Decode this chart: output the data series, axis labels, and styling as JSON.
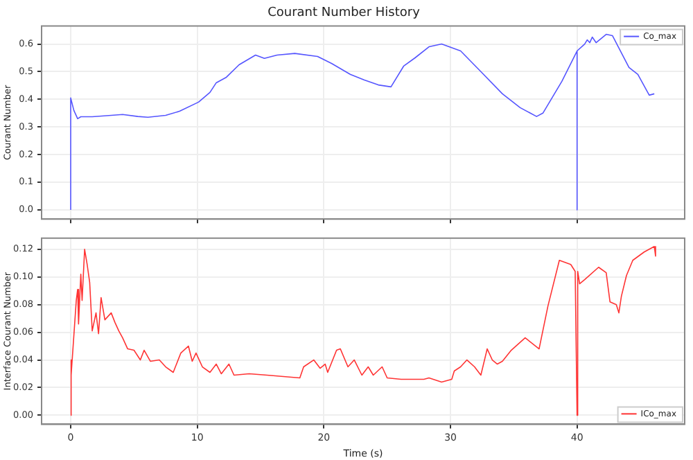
{
  "chart_data": [
    {
      "type": "line",
      "title": "Courant Number History",
      "ylabel": "Courant Number",
      "xlim": [
        -2.3,
        48.5
      ],
      "ylim": [
        -0.033,
        0.665
      ],
      "xticks": [
        0,
        10,
        20,
        30,
        40
      ],
      "yticks": [
        {
          "value": 0,
          "label": "0.0"
        },
        {
          "value": 0.1,
          "label": "0.1"
        },
        {
          "value": 0.2,
          "label": "0.2"
        },
        {
          "value": 0.3,
          "label": "0.3"
        },
        {
          "value": 0.4,
          "label": "0.4"
        },
        {
          "value": 0.5,
          "label": "0.5"
        },
        {
          "value": 0.6,
          "label": "0.6"
        }
      ],
      "grid": true,
      "legend": "top right",
      "tick_labels": "y",
      "series": [
        {
          "name": "Co_max",
          "color": "#5555ff",
          "x": [
            0,
            0,
            0.25,
            0.55,
            0.8,
            1.7,
            3.2,
            4.1,
            5.3,
            6.1,
            7.5,
            8.6,
            10.1,
            11,
            11.5,
            12.3,
            13.3,
            14.6,
            15.3,
            16.3,
            17.7,
            19.5,
            20.6,
            22.1,
            23.2,
            24.3,
            25.3,
            26.3,
            27.2,
            28.3,
            29.3,
            30.8,
            32.3,
            34.1,
            35.5,
            36.8,
            37.3,
            38.8,
            40,
            40,
            40,
            40.6,
            40.8,
            41,
            41.2,
            41.5,
            42.3,
            42.8,
            44.1,
            44.8,
            45.7,
            46.1
          ],
          "values": [
            0,
            0.405,
            0.36,
            0.33,
            0.337,
            0.337,
            0.342,
            0.345,
            0.338,
            0.335,
            0.342,
            0.357,
            0.39,
            0.425,
            0.46,
            0.48,
            0.525,
            0.56,
            0.548,
            0.56,
            0.566,
            0.555,
            0.53,
            0.49,
            0.47,
            0.452,
            0.445,
            0.52,
            0.55,
            0.59,
            0.6,
            0.575,
            0.505,
            0.42,
            0.37,
            0.338,
            0.35,
            0.465,
            0.575,
            0,
            0.575,
            0.6,
            0.615,
            0.605,
            0.625,
            0.605,
            0.635,
            0.63,
            0.515,
            0.49,
            0.415,
            0.42
          ]
        }
      ]
    },
    {
      "type": "line",
      "xlabel": "Time (s)",
      "ylabel": "Interface Courant Number",
      "xlim": [
        -2.3,
        48.5
      ],
      "ylim": [
        -0.0065,
        0.128
      ],
      "xticks": [
        0,
        10,
        20,
        30,
        40
      ],
      "yticks": [
        {
          "value": 0,
          "label": "0.00"
        },
        {
          "value": 0.02,
          "label": "0.02"
        },
        {
          "value": 0.04,
          "label": "0.04"
        },
        {
          "value": 0.06,
          "label": "0.06"
        },
        {
          "value": 0.08,
          "label": "0.08"
        },
        {
          "value": 0.1,
          "label": "0.10"
        },
        {
          "value": 0.12,
          "label": "0.12"
        }
      ],
      "grid": true,
      "legend": "bottom right",
      "series": [
        {
          "name": "ICo_max",
          "color": "#ff3333",
          "x": [
            0,
            0,
            0.07,
            0.44,
            0.55,
            0.62,
            0.8,
            0.9,
            1.1,
            1.3,
            1.5,
            1.7,
            2.0,
            2.2,
            2.4,
            2.7,
            3.2,
            3.5,
            3.8,
            4.1,
            4.5,
            5.0,
            5.5,
            5.8,
            6.3,
            7.0,
            7.5,
            8.1,
            8.7,
            9.3,
            9.6,
            9.9,
            10.4,
            11.0,
            11.5,
            11.9,
            12.5,
            12.9,
            14.1,
            15.5,
            18.1,
            18.4,
            19.2,
            19.7,
            20.1,
            20.3,
            21.0,
            21.3,
            21.9,
            22.4,
            23.0,
            23.5,
            23.9,
            24.6,
            25.0,
            26.1,
            27.9,
            28.3,
            29.3,
            30.1,
            30.3,
            30.8,
            31.3,
            31.9,
            32.4,
            32.9,
            33.3,
            33.7,
            34.1,
            34.8,
            35.9,
            37.0,
            37.7,
            38.6,
            39.5,
            39.85,
            40,
            40.05,
            40.2,
            40.6,
            41.7,
            42.3,
            42.6,
            43.1,
            43.3,
            43.5,
            43.9,
            44.4,
            45.3,
            46.1,
            46.2
          ],
          "values": [
            0,
            0.04,
            0.029,
            0.083,
            0.091,
            0.066,
            0.102,
            0.083,
            0.12,
            0.109,
            0.096,
            0.061,
            0.074,
            0.059,
            0.085,
            0.069,
            0.074,
            0.067,
            0.061,
            0.056,
            0.048,
            0.047,
            0.04,
            0.047,
            0.039,
            0.04,
            0.035,
            0.031,
            0.045,
            0.05,
            0.039,
            0.045,
            0.035,
            0.031,
            0.037,
            0.03,
            0.037,
            0.029,
            0.03,
            0.029,
            0.027,
            0.035,
            0.04,
            0.034,
            0.037,
            0.031,
            0.047,
            0.048,
            0.035,
            0.04,
            0.029,
            0.035,
            0.029,
            0.035,
            0.027,
            0.026,
            0.026,
            0.027,
            0.024,
            0.026,
            0.032,
            0.035,
            0.04,
            0.035,
            0.029,
            0.048,
            0.04,
            0.037,
            0.039,
            0.047,
            0.056,
            0.048,
            0.079,
            0.112,
            0.109,
            0.104,
            0,
            0.104,
            0.095,
            0.098,
            0.107,
            0.103,
            0.082,
            0.08,
            0.074,
            0.086,
            0.101,
            0.112,
            0.118,
            0.122,
            0.115
          ]
        }
      ]
    }
  ]
}
